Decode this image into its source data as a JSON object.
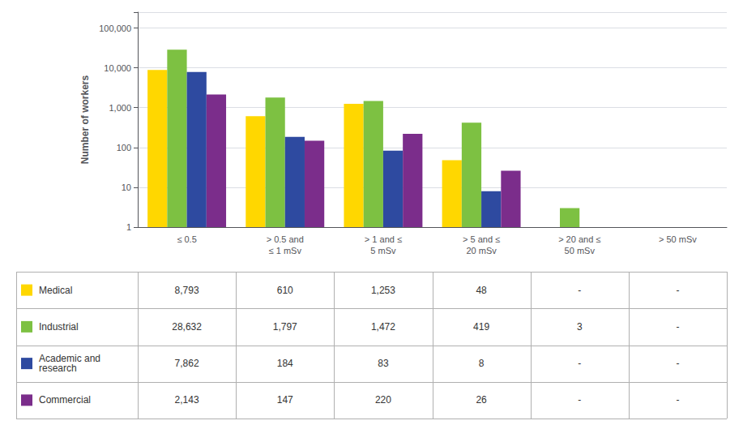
{
  "chart_data": {
    "type": "bar",
    "categories": [
      "≤ 0.5",
      "> 0.5 and\n≤ 1 mSv",
      "> 1 and ≤\n5 mSv",
      "> 5 and ≤\n20 mSv",
      "> 20 and ≤\n50 mSv",
      "> 50 mSv"
    ],
    "series": [
      {
        "name": "Medical",
        "color": "#FFD700",
        "values": [
          8793,
          610,
          1253,
          48,
          null,
          null
        ],
        "value_labels": [
          "8,793",
          "610",
          "1,253",
          "48",
          "-",
          "-"
        ]
      },
      {
        "name": "Industrial",
        "color": "#7DC142",
        "values": [
          28632,
          1797,
          1472,
          419,
          3,
          null
        ],
        "value_labels": [
          "28,632",
          "1,797",
          "1,472",
          "419",
          "3",
          "-"
        ]
      },
      {
        "name": "Academic and\nresearch",
        "color": "#2E4AA0",
        "values": [
          7862,
          184,
          83,
          8,
          null,
          null
        ],
        "value_labels": [
          "7,862",
          "184",
          "83",
          "8",
          "-",
          "-"
        ]
      },
      {
        "name": "Commercial",
        "color": "#7B2D8B",
        "values": [
          2143,
          147,
          220,
          26,
          null,
          null
        ],
        "value_labels": [
          "2,143",
          "147",
          "220",
          "26",
          "-",
          "-"
        ]
      }
    ],
    "ylabel": "Number of workers",
    "log": "y",
    "ylim": [
      1,
      250000
    ],
    "yticks": [
      1,
      10,
      100,
      {
        "value": 1000,
        "label": "1,000"
      },
      {
        "value": 10000,
        "label": "10,000"
      },
      {
        "value": 100000,
        "label": "100,000"
      }
    ],
    "grid": true
  }
}
